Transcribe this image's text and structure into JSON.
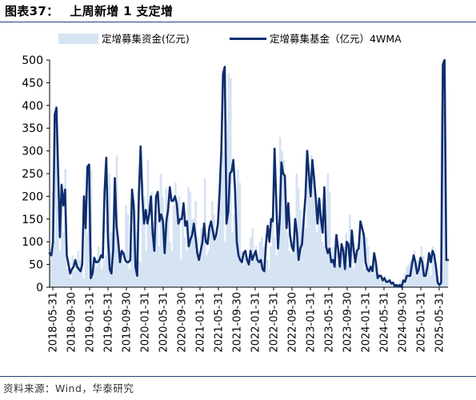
{
  "header": {
    "figure_number": "图表37：",
    "title": "上周新增 1 支定增"
  },
  "source": "资料来源：Wind，华泰研究",
  "chart_data": {
    "type": "area",
    "y_ticks": [
      "500",
      "450",
      "400",
      "350",
      "300",
      "250",
      "200",
      "150",
      "100",
      "50",
      "0"
    ],
    "x_tick_labels": [
      "2018-05-31",
      "2018-09-30",
      "2019-01-31",
      "2019-05-31",
      "2019-09-30",
      "2020-01-31",
      "2020-05-31",
      "2020-09-30",
      "2021-01-31",
      "2021-05-31",
      "2021-09-30",
      "2022-01-31",
      "2022-05-31",
      "2022-09-30",
      "2023-01-31",
      "2023-05-31",
      "2023-09-30",
      "2024-01-31",
      "2024-05-31",
      "2024-09-30",
      "2025-01-31",
      "2025-05-31"
    ],
    "ylim": [
      0,
      500
    ],
    "grid": false,
    "legend_position": "top",
    "series": [
      {
        "name": "定增募集资金(亿元)",
        "kind": "bar-area",
        "color": "#d6e3f3",
        "values": [
          60,
          210,
          100,
          400,
          180,
          80,
          230,
          120,
          260,
          40,
          60,
          20,
          70,
          35,
          50,
          80,
          60,
          40,
          20,
          210,
          120,
          270,
          260,
          30,
          60,
          45,
          90,
          70,
          40,
          60,
          70,
          220,
          250,
          120,
          40,
          160,
          290,
          100,
          70,
          60,
          50,
          180,
          160,
          40,
          90,
          130,
          170,
          120,
          60,
          55,
          230,
          200,
          80,
          280,
          140,
          210,
          110,
          170,
          150,
          90,
          250,
          200,
          140,
          220,
          190,
          100,
          80,
          180,
          230,
          150,
          200,
          60,
          150,
          110,
          80,
          220,
          210,
          150,
          150,
          190,
          110,
          60,
          130,
          120,
          240,
          70,
          80,
          130,
          190,
          160,
          120,
          110,
          180,
          250,
          300,
          100,
          370,
          470,
          460,
          120,
          160,
          130,
          260,
          230,
          80,
          50,
          75,
          60,
          60,
          110,
          130,
          70,
          90,
          60,
          100,
          110,
          90,
          60,
          60,
          40,
          90,
          160,
          110,
          70,
          140,
          330,
          300,
          280,
          210,
          120,
          80,
          75,
          100,
          130,
          250,
          220,
          170,
          100,
          150,
          130,
          280,
          200,
          290,
          250,
          190,
          120,
          200,
          160,
          100,
          90,
          110,
          250,
          210,
          60,
          90,
          110,
          50,
          60,
          70,
          80,
          90,
          120,
          50,
          160,
          120,
          40,
          60,
          90,
          80,
          110,
          120,
          40,
          110,
          90,
          50,
          30,
          55,
          45,
          20,
          30,
          20,
          15,
          25,
          10,
          20,
          10,
          12,
          5,
          8,
          5,
          5,
          15,
          10,
          30,
          45,
          50,
          60,
          50,
          80,
          30,
          60,
          40,
          90,
          70,
          50,
          20,
          60,
          25,
          90,
          80,
          40,
          20,
          10,
          400,
          500,
          60,
          60
        ]
      },
      {
        "name": "定增募集基金（亿元）4WMA",
        "kind": "line",
        "color": "#0e2d6e",
        "values": [
          75,
          70,
          100,
          380,
          395,
          250,
          110,
          225,
          180,
          215,
          70,
          50,
          30,
          40,
          45,
          60,
          45,
          40,
          35,
          50,
          200,
          130,
          265,
          270,
          20,
          30,
          65,
          55,
          55,
          60,
          70,
          65,
          210,
          285,
          110,
          40,
          30,
          80,
          240,
          135,
          100,
          55,
          80,
          75,
          60,
          55,
          55,
          60,
          215,
          180,
          45,
          25,
          205,
          310,
          200,
          140,
          170,
          140,
          160,
          200,
          120,
          80,
          200,
          210,
          145,
          160,
          145,
          75,
          145,
          170,
          220,
          190,
          190,
          200,
          185,
          140,
          150,
          150,
          185,
          135,
          145,
          90,
          105,
          115,
          140,
          110,
          75,
          60,
          80,
          100,
          140,
          100,
          95,
          130,
          145,
          125,
          105,
          115,
          140,
          210,
          300,
          470,
          485,
          140,
          165,
          250,
          255,
          280,
          215,
          100,
          70,
          60,
          55,
          75,
          80,
          60,
          50,
          80,
          60,
          70,
          80,
          60,
          55,
          60,
          40,
          35,
          95,
          135,
          100,
          150,
          145,
          305,
          185,
          85,
          150,
          275,
          250,
          245,
          130,
          185,
          115,
          90,
          80,
          150,
          120,
          60,
          85,
          95,
          150,
          200,
          300,
          250,
          200,
          280,
          240,
          195,
          140,
          195,
          150,
          120,
          220,
          90,
          75,
          85,
          55,
          60,
          45,
          115,
          85,
          45,
          95,
          80,
          40,
          100,
          95,
          45,
          125,
          85,
          55,
          80,
          85,
          145,
          130,
          115,
          55,
          40,
          35,
          45,
          35,
          75,
          55,
          20,
          25,
          25,
          15,
          20,
          12,
          12,
          15,
          8,
          10,
          2,
          5,
          2,
          5,
          0,
          15,
          12,
          25,
          25,
          25,
          50,
          70,
          55,
          30,
          40,
          65,
          55,
          25,
          25,
          45,
          75,
          55,
          80,
          70,
          45,
          10,
          5,
          10,
          490,
          510,
          60,
          60
        ]
      }
    ]
  }
}
